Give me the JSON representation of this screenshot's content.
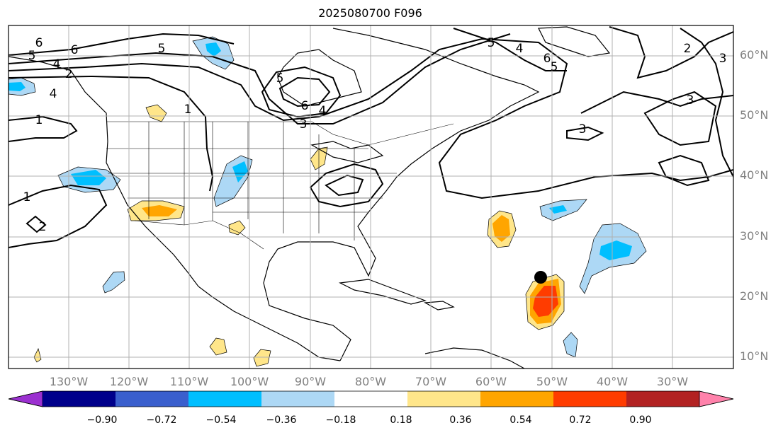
{
  "title": "2025080700 F096",
  "lat_labels": [
    "60°N",
    "50°N",
    "40°N",
    "30°N",
    "20°N",
    "10°N"
  ],
  "lon_labels": [
    "130°W",
    "120°W",
    "110°W",
    "100°W",
    "90°W",
    "80°W",
    "70°W",
    "60°W",
    "50°W",
    "40°W",
    "30°W"
  ],
  "colorbar": {
    "colors": [
      "#9b30d0",
      "#00008b",
      "#3a5fcd",
      "#00bfff",
      "#add8f5",
      "#ffffff",
      "#ffe68a",
      "#ffa500",
      "#ff3c00",
      "#b22222",
      "#ff82ab"
    ],
    "labels": [
      "−0.90",
      "−0.72",
      "−0.54",
      "−0.36",
      "−0.18",
      "0.18",
      "0.36",
      "0.54",
      "0.72",
      "0.90"
    ]
  },
  "contour_labels": [
    "6",
    "5",
    "6",
    "4",
    "2",
    "4",
    "1",
    "5",
    "5",
    "1",
    "6",
    "4",
    "3",
    "5",
    "4",
    "6",
    "5",
    "2",
    "3",
    "3",
    "3",
    "1",
    "2"
  ],
  "marker": {
    "type": "storm-position-dot",
    "lon": -52,
    "lat": 23
  }
}
